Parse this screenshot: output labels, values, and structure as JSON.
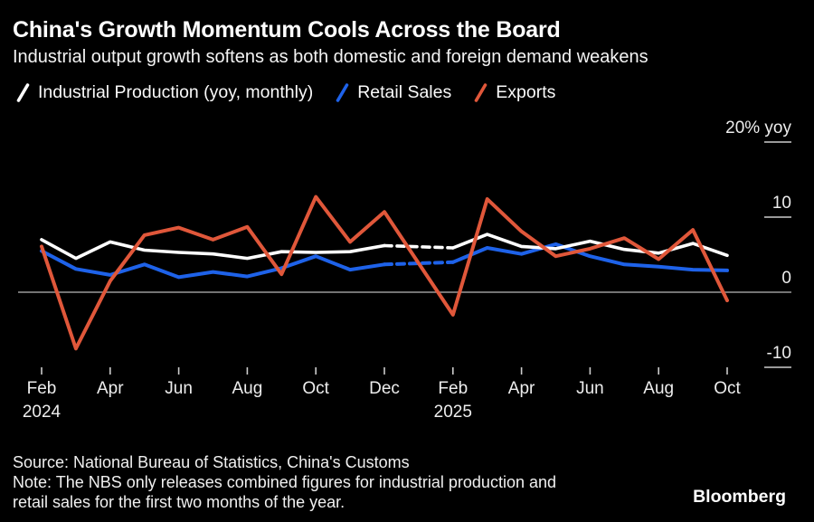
{
  "title": "China's Growth Momentum Cools Across the Board",
  "subtitle": "Industrial output growth softens as both domestic and foreign demand weakens",
  "colors": {
    "background": "#000000",
    "industrial_production": "#ffffff",
    "retail_sales": "#1e62e9",
    "exports": "#e0573a",
    "zero_line": "#9a9a9a",
    "tick": "#cccccc",
    "label_text": "#ededed"
  },
  "legend": [
    {
      "label": "Industrial Production (yoy, monthly)",
      "color": "#ffffff",
      "icon": "slash-icon"
    },
    {
      "label": "Retail Sales",
      "color": "#1e62e9",
      "icon": "slash-icon"
    },
    {
      "label": "Exports",
      "color": "#e0573a",
      "icon": "slash-icon"
    }
  ],
  "y_axis": {
    "unit_label": "20% yoy",
    "labels": [
      "20% yoy",
      "10",
      "0",
      "-10"
    ],
    "tick_values": [
      20,
      10,
      0,
      -10
    ],
    "side": "right"
  },
  "x_axis": {
    "tick_month_index": [
      0,
      2,
      4,
      6,
      8,
      10,
      12,
      14,
      16,
      18,
      20
    ],
    "tick_labels": [
      "Feb",
      "Apr",
      "Jun",
      "Aug",
      "Oct",
      "Dec",
      "Feb",
      "Apr",
      "Jun",
      "Aug",
      "Oct"
    ],
    "year_labels": [
      {
        "text": "2024",
        "month_index": 0
      },
      {
        "text": "2025",
        "month_index": 12
      }
    ]
  },
  "chart_data": {
    "type": "line",
    "title": "China's Growth Momentum Cools Across the Board",
    "subtitle": "Industrial output growth softens as both domestic and foreign demand weakens",
    "unit": "% yoy",
    "ylim": [
      -12,
      22
    ],
    "y_ticks": [
      20,
      10,
      0,
      -10
    ],
    "grid": "zero-line-only",
    "legend_position": "top-left",
    "months": [
      "Feb 2024",
      "Mar 2024",
      "Apr 2024",
      "May 2024",
      "Jun 2024",
      "Jul 2024",
      "Aug 2024",
      "Sep 2024",
      "Oct 2024",
      "Nov 2024",
      "Dec 2024",
      "Feb 2025",
      "Mar 2025",
      "Apr 2025",
      "May 2025",
      "Jun 2025",
      "Jul 2025",
      "Aug 2025",
      "Sep 2025",
      "Oct 2025"
    ],
    "month_index": [
      0,
      1,
      2,
      3,
      4,
      5,
      6,
      7,
      8,
      9,
      10,
      12,
      13,
      14,
      15,
      16,
      17,
      18,
      19,
      20
    ],
    "series": [
      {
        "name": "Retail Sales",
        "color": "#1e62e9",
        "width": 4,
        "dash_between": [
          10,
          12
        ],
        "values": [
          5.5,
          3.1,
          2.3,
          3.7,
          2.0,
          2.7,
          2.1,
          3.2,
          4.8,
          3.0,
          3.7,
          4.0,
          5.9,
          5.1,
          6.4,
          4.8,
          3.7,
          3.4,
          3.0,
          2.9
        ]
      },
      {
        "name": "Industrial Production (yoy, monthly)",
        "color": "#ffffff",
        "width": 3.6,
        "dash_between": [
          10,
          12
        ],
        "values": [
          7.0,
          4.5,
          6.7,
          5.6,
          5.3,
          5.1,
          4.5,
          5.4,
          5.3,
          5.4,
          6.2,
          5.9,
          7.7,
          6.1,
          5.8,
          6.8,
          5.7,
          5.2,
          6.5,
          4.9
        ]
      },
      {
        "name": "Exports",
        "color": "#e0573a",
        "width": 4,
        "values": [
          6.1,
          -7.5,
          1.5,
          7.6,
          8.6,
          7.0,
          8.7,
          2.4,
          12.7,
          6.7,
          10.7,
          -3.0,
          12.4,
          8.1,
          4.8,
          5.8,
          7.2,
          4.4,
          8.3,
          -1.1
        ]
      }
    ]
  },
  "footer": {
    "source": "Source: National Bureau of Statistics, China's Customs",
    "note_line1": "Note: The NBS only releases combined figures for industrial production and",
    "note_line2": "retail sales for the first two months of the year.",
    "brand": "Bloomberg"
  }
}
